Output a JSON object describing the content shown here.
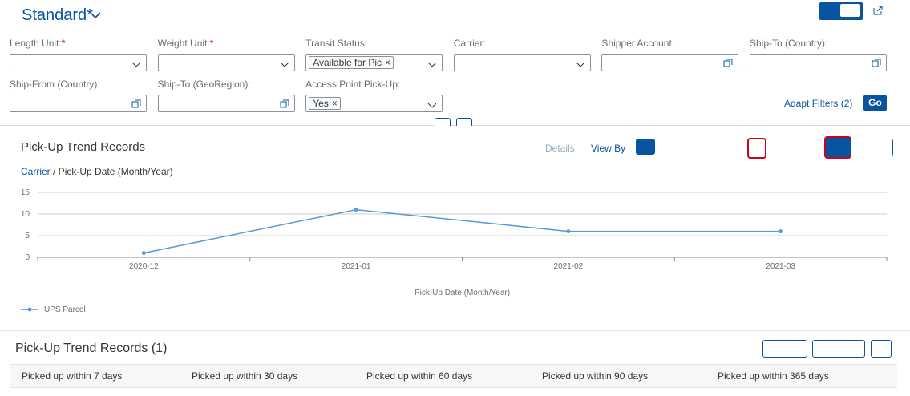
{
  "header": {
    "title": "Standard*"
  },
  "filters": [
    {
      "label": "Length Unit:",
      "required": "*"
    },
    {
      "label": "Weight Unit:",
      "required": "*"
    },
    {
      "label": "Transit Status:",
      "token": "Available for Pic"
    },
    {
      "label": "Carrier:"
    },
    {
      "label": "Shipper Account:"
    },
    {
      "label": "Ship-To (Country):"
    },
    {
      "label": "Ship-From (Country):"
    },
    {
      "label": "Ship-To (GeoRegion):"
    },
    {
      "label": "Access Point Pick-Up:",
      "token": "Yes"
    }
  ],
  "filter_bar": {
    "adapt_filters": "Adapt Filters (2)",
    "go": "Go"
  },
  "chart_panel": {
    "title": "Pick-Up Trend Records",
    "details": "Details",
    "view_by": "View By",
    "breadcrumb_link": "Carrier",
    "breadcrumb_rest": "/ Pick-Up Date (Month/Year)"
  },
  "chart_data": {
    "type": "line",
    "categories": [
      "2020-12",
      "2021-01",
      "2021-02",
      "2021-03"
    ],
    "series": [
      {
        "name": "UPS Parcel",
        "color": "#5899da",
        "values": [
          1,
          11,
          6,
          6
        ]
      }
    ],
    "ylim": [
      0,
      15
    ],
    "yticks": [
      0,
      5,
      10,
      15
    ],
    "xlabel": "Pick-Up Date (Month/Year)",
    "grid": true,
    "legend": "bottom-left"
  },
  "table": {
    "title": "Pick-Up Trend Records (1)",
    "columns": [
      "Picked up within 7 days",
      "Picked up within 30 days",
      "Picked up within 60 days",
      "Picked up within 90 days",
      "Picked up within 365 days"
    ]
  }
}
